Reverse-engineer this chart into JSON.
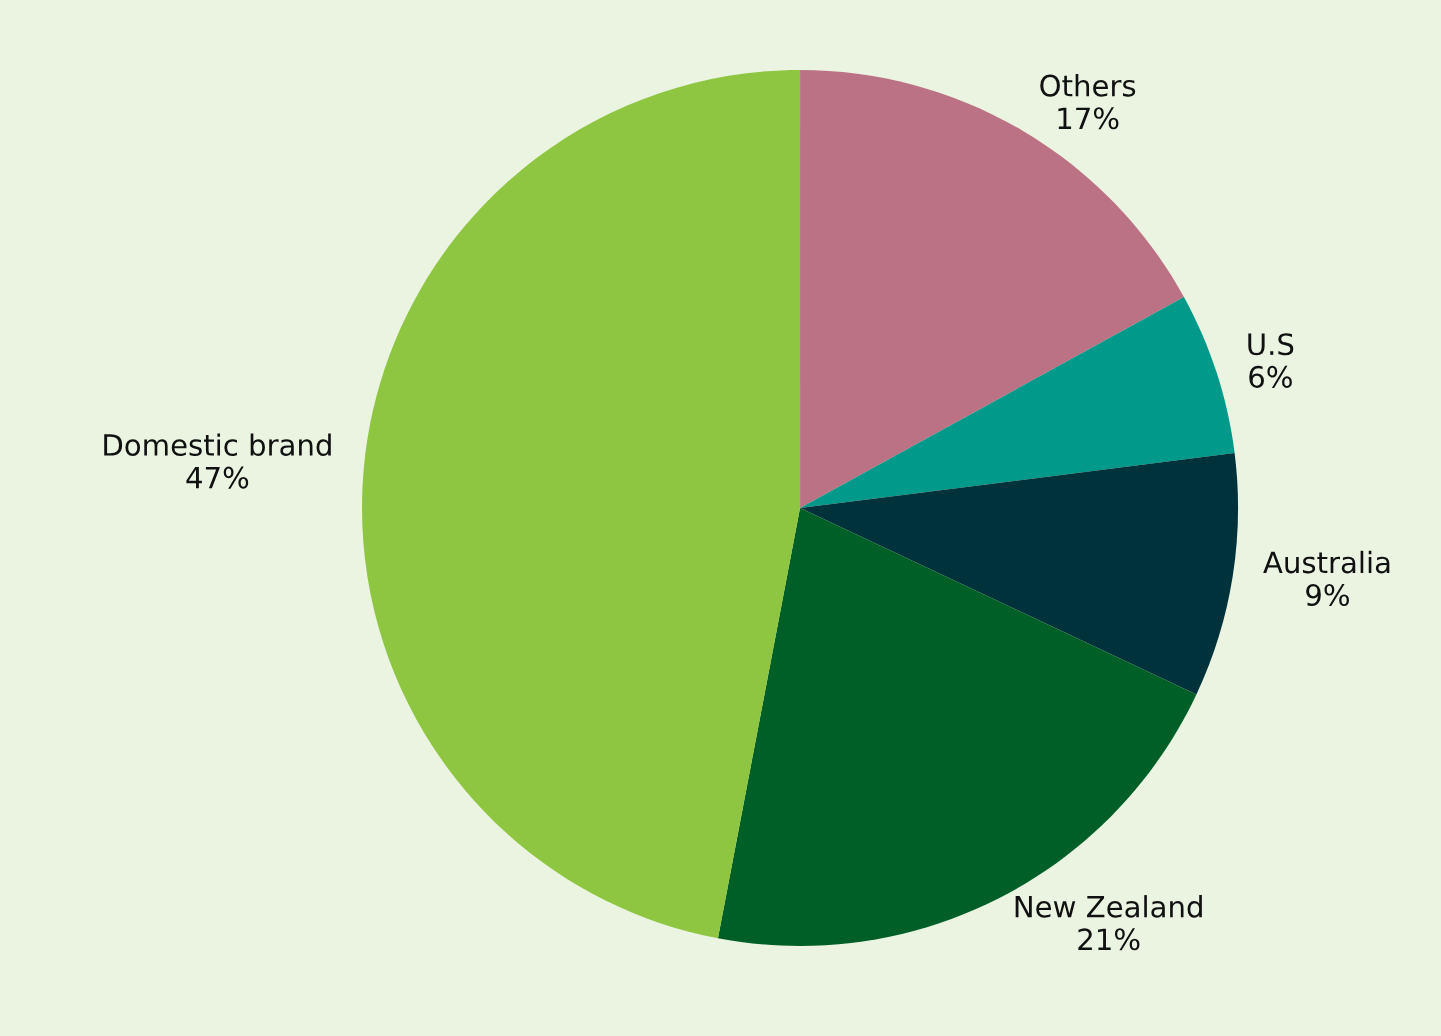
{
  "chart_data": {
    "type": "pie",
    "categories": [
      "Others",
      "U.S",
      "Australia",
      "New Zealand",
      "Domestic brand"
    ],
    "values": [
      17,
      6,
      9,
      21,
      47
    ],
    "value_labels": [
      "17%",
      "6%",
      "9%",
      "21%",
      "47%"
    ],
    "colors": [
      "#bb7285",
      "#00998a",
      "#00323c",
      "#005f27",
      "#8fc641"
    ]
  }
}
